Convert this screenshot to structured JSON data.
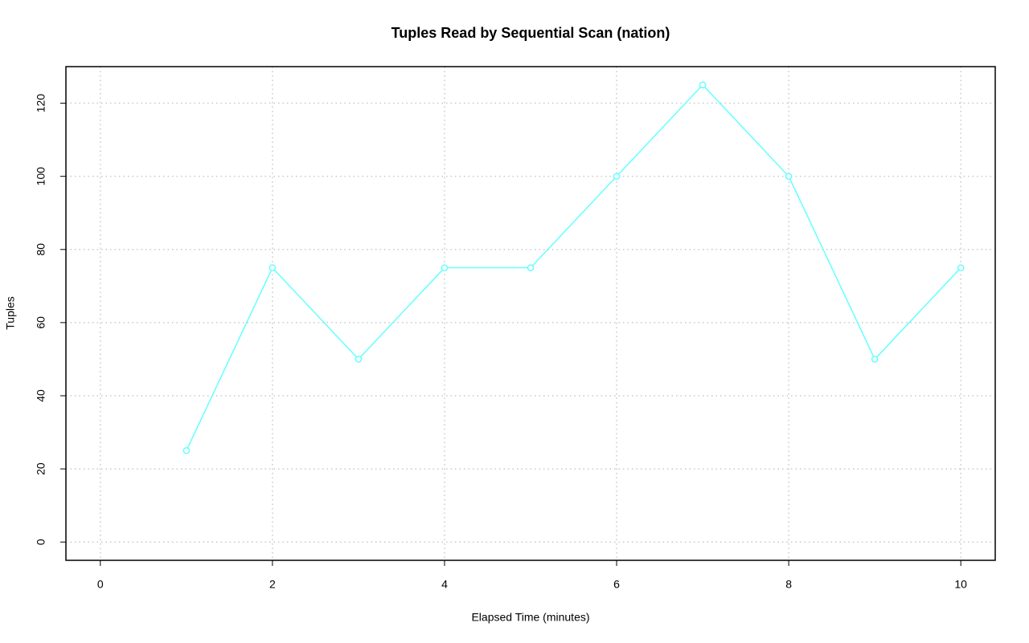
{
  "chart_data": {
    "type": "line",
    "title": "Tuples Read by Sequential Scan (nation)",
    "x_label": "Elapsed Time (minutes)",
    "y_label": "Tuples",
    "x": [
      1,
      2,
      3,
      4,
      5,
      6,
      7,
      8,
      9,
      10
    ],
    "series": [
      {
        "color": "#66ffff",
        "values": [
          25,
          75,
          50,
          75,
          75,
          100,
          125,
          100,
          50,
          75
        ]
      }
    ],
    "xlim": [
      -0.4,
      10.4
    ],
    "xticks": [
      0,
      2,
      4,
      6,
      8,
      10
    ],
    "ylim": [
      -5,
      130
    ],
    "yticks": [
      0,
      20,
      40,
      60,
      80,
      100,
      120
    ],
    "grid": true
  }
}
